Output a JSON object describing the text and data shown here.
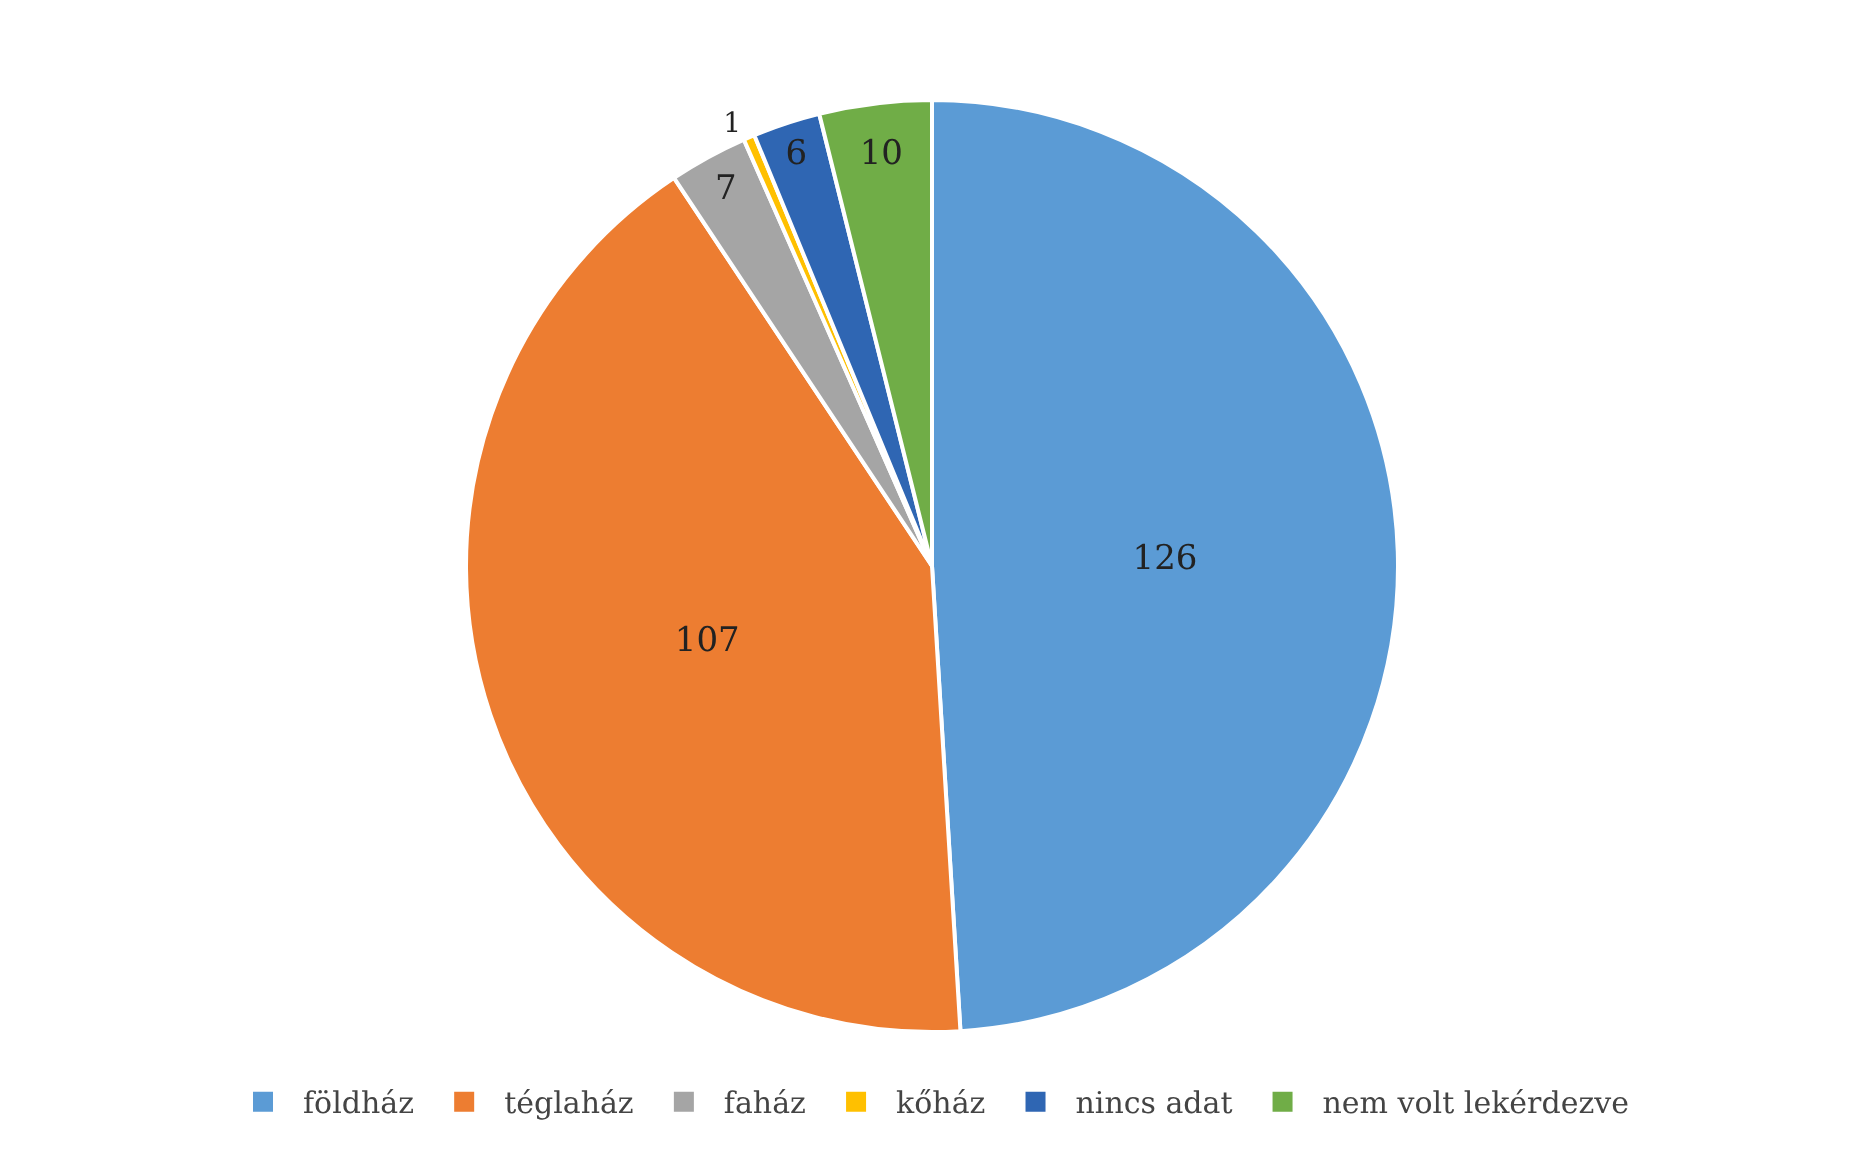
{
  "chart_data": {
    "type": "pie",
    "categories": [
      "földház",
      "téglaház",
      "faház",
      "kőház",
      "nincs adat",
      "nem volt lekérdezve"
    ],
    "values": [
      126,
      107,
      7,
      1,
      6,
      10
    ],
    "colors": [
      "#5b9bd5",
      "#ed7d31",
      "#a5a5a5",
      "#ffc000",
      "#2f66b3",
      "#70ad47"
    ],
    "data_labels": true,
    "legend": "bottom"
  }
}
